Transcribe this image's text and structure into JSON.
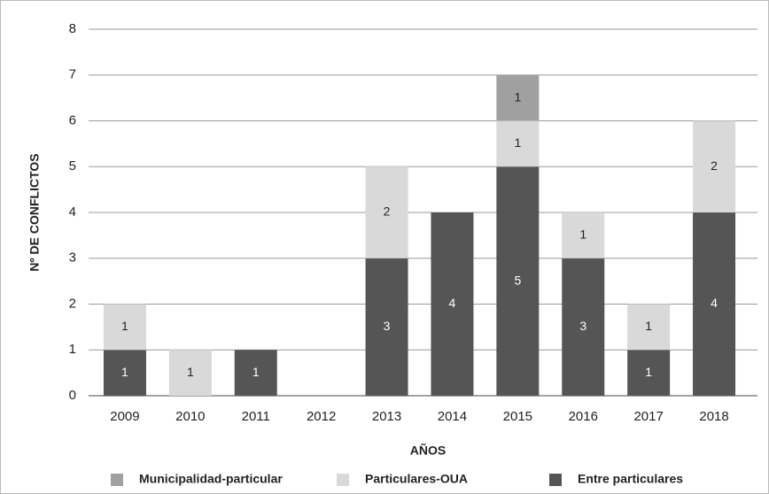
{
  "chart_data": {
    "type": "stacked_bar",
    "x_label": "AÑOS",
    "y_label": "Nº DE CONFLICTOS",
    "categories": [
      "2009",
      "2010",
      "2011",
      "2012",
      "2013",
      "2014",
      "2015",
      "2016",
      "2017",
      "2018"
    ],
    "series": [
      {
        "name": "Entre particulares",
        "color": "#555555",
        "label_color": "#ffffff",
        "values": [
          1,
          0,
          1,
          0,
          3,
          4,
          5,
          3,
          1,
          4
        ]
      },
      {
        "name": "Particulares-OUA",
        "color": "#d9d9d9",
        "label_color": "#222222",
        "values": [
          1,
          1,
          0,
          0,
          2,
          0,
          1,
          1,
          1,
          2
        ]
      },
      {
        "name": "Municipalidad-particular",
        "color": "#a0a0a0",
        "label_color": "#222222",
        "values": [
          0,
          0,
          0,
          0,
          0,
          0,
          1,
          0,
          0,
          0
        ]
      }
    ],
    "ylim": [
      0,
      8
    ],
    "yticks": [
      0,
      1,
      2,
      3,
      4,
      5,
      6,
      7,
      8
    ],
    "grid": true,
    "legend": "bottom"
  }
}
